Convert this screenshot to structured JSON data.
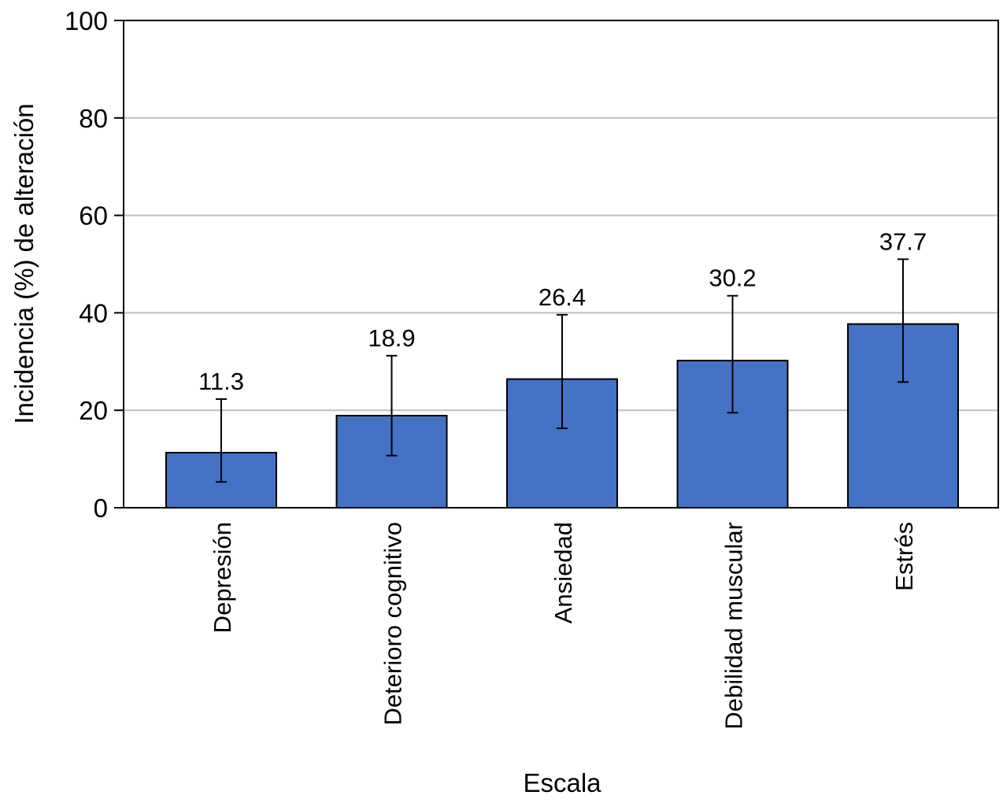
{
  "chart_data": {
    "type": "bar",
    "title": "",
    "xlabel": "Escala",
    "ylabel": "Incidencia (%) de alteración",
    "ylim": [
      0,
      100
    ],
    "yticks": [
      0,
      20,
      40,
      60,
      80,
      100
    ],
    "grid": true,
    "categories": [
      "Depresión",
      "Deterioro cognitivo",
      "Ansiedad",
      "Debilidad muscular",
      "Estrés"
    ],
    "values": [
      11.3,
      18.9,
      26.4,
      30.2,
      37.7
    ],
    "value_labels": [
      "11.3",
      "18.9",
      "26.4",
      "30.2",
      "37.7"
    ],
    "error_low": [
      5.3,
      10.7,
      16.3,
      19.5,
      25.8
    ],
    "error_high": [
      22.3,
      31.2,
      39.6,
      43.5,
      51.0
    ],
    "bar_color": "#4472C4"
  }
}
